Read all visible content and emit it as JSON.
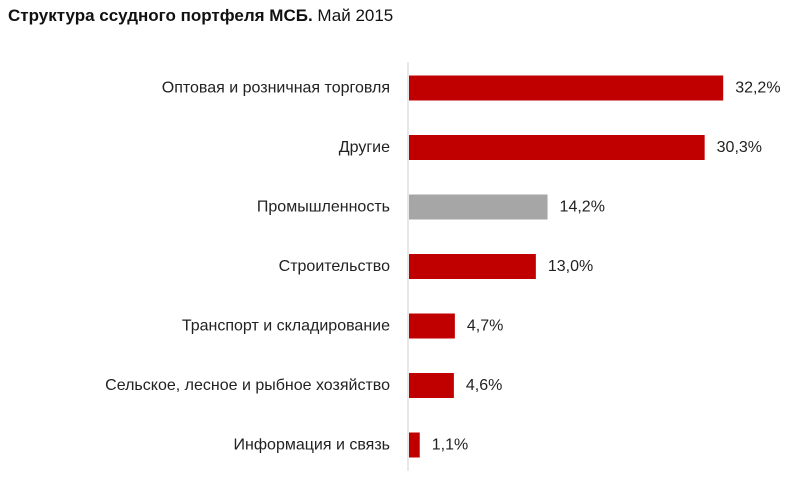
{
  "chart_data": {
    "type": "bar",
    "orientation": "horizontal",
    "title": "Структура  ссудного портфеля МСБ.",
    "subtitle": "Май 2015",
    "categories": [
      "Оптовая и розничная торговля",
      "Другие",
      "Промышленность",
      "Строительство",
      "Транспорт и складирование",
      "Сельское, лесное и рыбное хозяйство",
      "Информация и связь"
    ],
    "values": [
      32.2,
      30.3,
      14.2,
      13.0,
      4.7,
      4.6,
      1.1
    ],
    "value_labels": [
      "32,2%",
      "30,3%",
      "14,2%",
      "13,0%",
      "4,7%",
      "4,6%",
      "1,1%"
    ],
    "bar_colors": [
      "#c00000",
      "#c00000",
      "#a6a6a6",
      "#c00000",
      "#c00000",
      "#c00000",
      "#c00000"
    ],
    "xlabel": "",
    "ylabel": "",
    "xlim": [
      0,
      33
    ],
    "grid": false,
    "legend": "none"
  }
}
